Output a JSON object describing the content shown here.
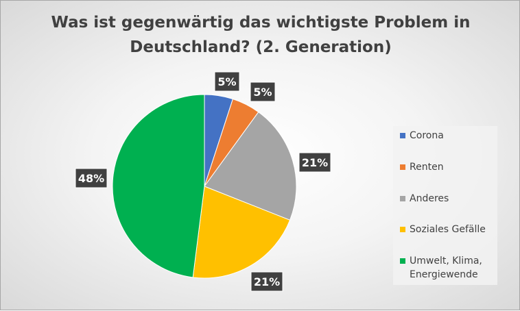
{
  "chart_data": {
    "type": "pie",
    "title_lines": [
      "Was ist gegenwärtig das wichtigste Problem in",
      "Deutschland? (2. Generation)"
    ],
    "categories": [
      "Corona",
      "Renten",
      "Anderes",
      "Soziales Gefälle",
      "Umwelt, Klima, Energiewende"
    ],
    "values": [
      5,
      5,
      21,
      21,
      48
    ],
    "data_labels": [
      "5%",
      "5%",
      "21%",
      "21%",
      "48%"
    ],
    "colors": [
      "#4472c4",
      "#ed7d31",
      "#a5a5a5",
      "#ffc000",
      "#00b050"
    ],
    "legend_position": "right"
  }
}
